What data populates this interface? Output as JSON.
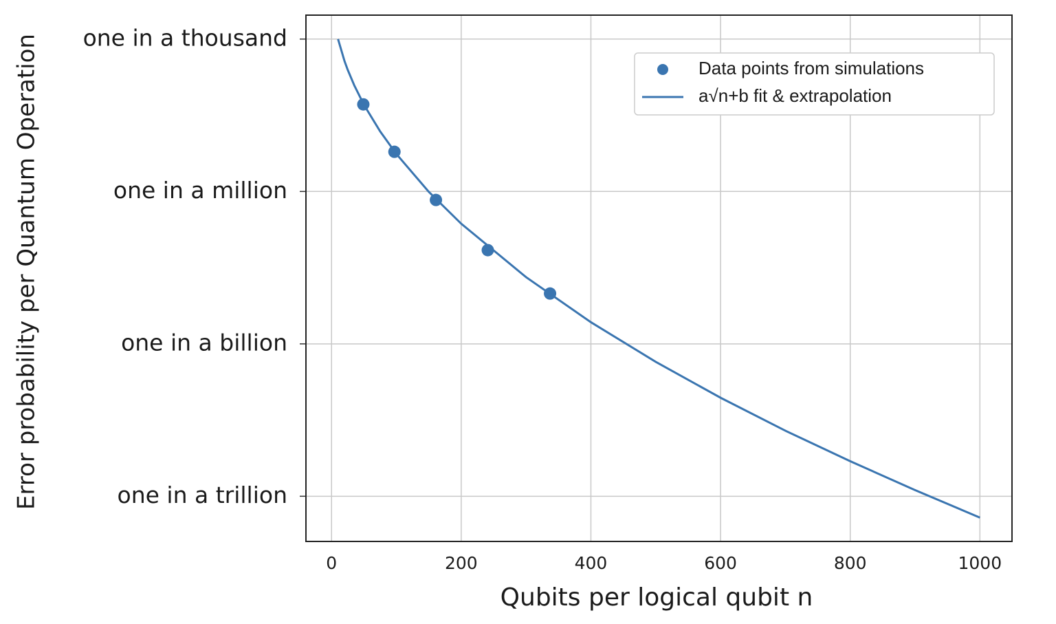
{
  "chart_data": {
    "type": "line",
    "xlabel": "Qubits per logical qubit n",
    "ylabel": "Error probability per Quantum Operation",
    "xlim": [
      -39.5,
      1049.5
    ],
    "xticks": [
      0,
      200,
      400,
      600,
      800,
      1000
    ],
    "ylim": [
      1.29e-13,
      0.00296
    ],
    "yscale": "log",
    "yticks": [
      {
        "value": 1e-12,
        "label": "one in a trillion"
      },
      {
        "value": 1e-09,
        "label": "one in a billion"
      },
      {
        "value": 1e-06,
        "label": "one in a million"
      },
      {
        "value": 0.001,
        "label": "one in a thousand"
      }
    ],
    "grid": true,
    "legend": "upper right",
    "series": [
      {
        "name": "Data points from simulations",
        "type": "scatter",
        "color": "#3a75b0",
        "x": [
          49,
          97,
          161,
          241,
          337
        ],
        "values": [
          5.18e-05,
          6.04e-06,
          6.8e-07,
          7e-08,
          9.8e-09
        ]
      },
      {
        "name": "a√n+b fit & extrapolation",
        "type": "line",
        "color": "#3a75b0",
        "x": [
          10,
          20,
          25,
          35,
          50,
          75,
          100,
          150,
          200,
          300,
          400,
          500,
          600,
          700,
          800,
          900,
          1000
        ],
        "values": [
          0.001,
          0.000369,
          0.000247,
          0.000123,
          5.08e-05,
          1.52e-05,
          5.46e-06,
          9.84e-07,
          2.32e-07,
          2.06e-08,
          2.67e-09,
          4.43e-10,
          8.7e-11,
          1.95e-11,
          4.9e-12,
          1.32e-12,
          3.8e-13
        ]
      }
    ]
  }
}
